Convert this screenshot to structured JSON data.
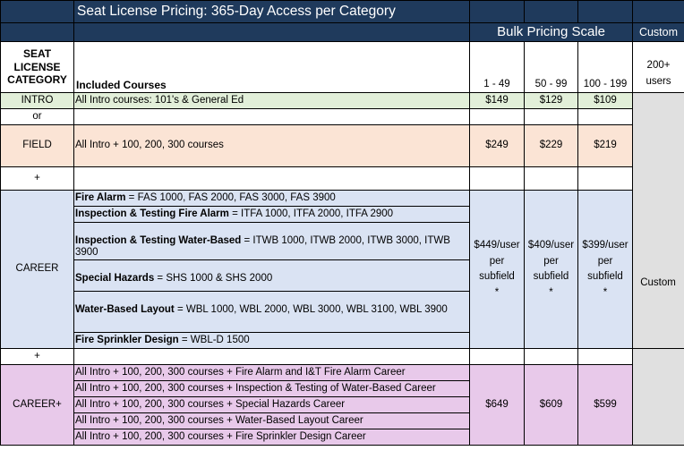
{
  "title": "Seat License Pricing: 365-Day Access per Category",
  "bulk_label": "Bulk Pricing Scale",
  "custom_label": "Custom",
  "headers": {
    "category": [
      "SEAT",
      "LICENSE",
      "CATEGORY"
    ],
    "courses": "Included Courses",
    "tiers": [
      "1 - 49",
      "50 - 99",
      "100 - 199"
    ],
    "custom": [
      "200+",
      "users"
    ]
  },
  "rows": {
    "intro": {
      "category": "INTRO",
      "courses": "All Intro courses: 101's & General Ed",
      "prices": [
        "$149",
        "$129",
        "$109"
      ]
    },
    "or": "or",
    "field": {
      "category": "FIELD",
      "courses": "All Intro + 100, 200, 300 courses",
      "prices": [
        "$249",
        "$229",
        "$219"
      ]
    },
    "plus": "+",
    "career": {
      "category": "CAREER",
      "subfields": [
        {
          "name": "Fire Alarm",
          "courses": " = FAS 1000, FAS 2000, FAS 3000, FAS 3900"
        },
        {
          "name": "Inspection & Testing Fire Alarm",
          "courses": " = ITFA 1000, ITFA 2000, ITFA 2900"
        },
        {
          "name": "Inspection & Testing Water-Based",
          "courses": " = ITWB 1000, ITWB 2000, ITWB 3000, ITWB 3900"
        },
        {
          "name": "Special Hazards",
          "courses": " = SHS 1000 & SHS 2000"
        },
        {
          "name": "Water-Based Layout",
          "courses": " = WBL 1000, WBL 2000, WBL 3000, WBL 3100, WBL 3900"
        },
        {
          "name": "Fire Sprinkler Design",
          "courses": " = WBL-D 1500"
        }
      ],
      "prices": [
        {
          "amount": "$449/user",
          "per": "per",
          "unit": "subfield",
          "note": "*"
        },
        {
          "amount": "$409/user",
          "per": "per",
          "unit": "subfield",
          "note": "*"
        },
        {
          "amount": "$399/user",
          "per": "per",
          "unit": "subfield",
          "note": "*"
        }
      ],
      "custom": "Custom"
    },
    "plus2": "+",
    "career_plus": {
      "category": "CAREER+",
      "courses": [
        "All Intro + 100, 200, 300 courses + Fire Alarm and I&T Fire Alarm Career",
        "All Intro + 100, 200, 300 courses + Inspection & Testing of Water-Based Career",
        "All Intro + 100, 200, 300 courses + Special Hazards Career",
        "All Intro + 100, 200, 300 courses + Water-Based Layout Career",
        "All Intro + 100, 200, 300 courses + Fire Sprinkler Design Career"
      ],
      "prices": [
        "$649",
        "$609",
        "$599"
      ]
    }
  },
  "colors": {
    "header": "#1f3a5c",
    "intro": "#e2efd9",
    "field": "#fbe4d5",
    "career": "#dae3f3",
    "career_plus": "#e8c9ea",
    "custom_column": "#e0e0e0"
  }
}
